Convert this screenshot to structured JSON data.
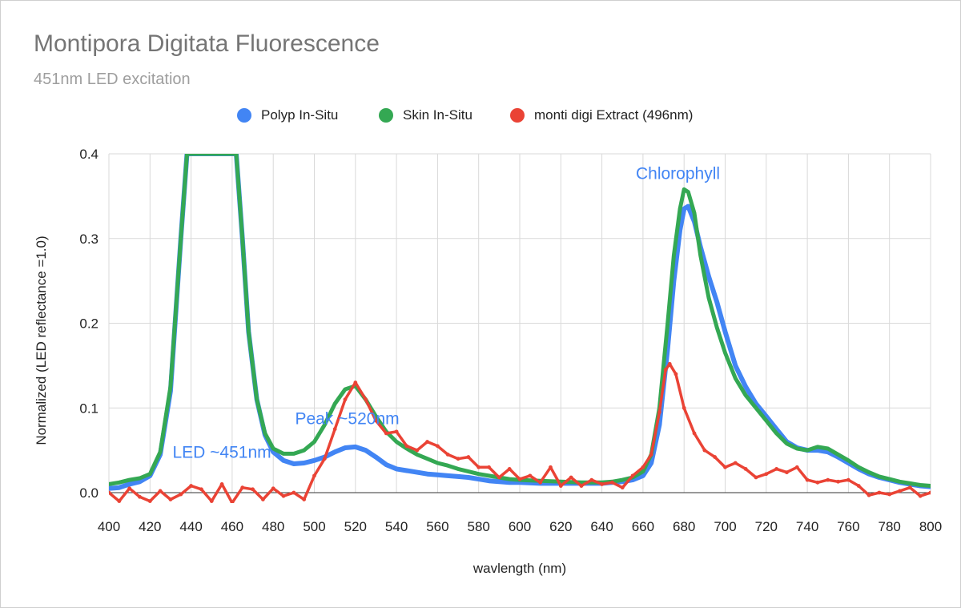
{
  "title": "Montipora Digitata Fluorescence",
  "subtitle": "451nm LED excitation",
  "legend": [
    {
      "label": "Polyp In-Situ",
      "color": "#4285f4"
    },
    {
      "label": "Skin In-Situ",
      "color": "#34a853"
    },
    {
      "label": "monti digi Extract (496nm)",
      "color": "#ea4335"
    }
  ],
  "chart_data": {
    "type": "line",
    "title": "Montipora Digitata Fluorescence",
    "subtitle": "451nm LED excitation",
    "xlabel": "wavlength (nm)",
    "ylabel": "Normalized (LED reflectance =1.0)",
    "xlim": [
      400,
      800
    ],
    "ylim": [
      0,
      0.4
    ],
    "x_ticks": [
      400,
      420,
      440,
      460,
      480,
      500,
      520,
      540,
      560,
      580,
      600,
      620,
      640,
      660,
      680,
      700,
      720,
      740,
      760,
      780,
      800
    ],
    "y_ticks": [
      0.0,
      0.1,
      0.2,
      0.3,
      0.4
    ],
    "y_tick_labels": [
      "0.0",
      "0.1",
      "0.2",
      "0.3",
      "0.4"
    ],
    "grid": true,
    "legend_position": "top",
    "series": [
      {
        "name": "Polyp In-Situ",
        "color": "#4285f4",
        "x": [
          400,
          405,
          410,
          415,
          420,
          425,
          430,
          435,
          438,
          440,
          462,
          465,
          468,
          472,
          476,
          480,
          485,
          490,
          495,
          500,
          505,
          510,
          515,
          520,
          525,
          530,
          535,
          540,
          545,
          550,
          555,
          560,
          565,
          570,
          575,
          580,
          585,
          590,
          595,
          600,
          610,
          620,
          630,
          640,
          645,
          650,
          655,
          660,
          664,
          668,
          672,
          675,
          678,
          680,
          682,
          685,
          688,
          692,
          696,
          700,
          705,
          710,
          715,
          720,
          725,
          730,
          735,
          740,
          745,
          750,
          755,
          760,
          765,
          770,
          775,
          780,
          785,
          790,
          795,
          800
        ],
        "y": [
          0.005,
          0.006,
          0.01,
          0.013,
          0.02,
          0.045,
          0.12,
          0.3,
          0.4,
          0.4,
          0.4,
          0.3,
          0.19,
          0.11,
          0.068,
          0.048,
          0.038,
          0.034,
          0.035,
          0.038,
          0.042,
          0.048,
          0.053,
          0.054,
          0.05,
          0.042,
          0.033,
          0.028,
          0.026,
          0.024,
          0.022,
          0.021,
          0.02,
          0.019,
          0.018,
          0.016,
          0.014,
          0.013,
          0.012,
          0.012,
          0.011,
          0.011,
          0.011,
          0.011,
          0.012,
          0.013,
          0.015,
          0.02,
          0.035,
          0.08,
          0.17,
          0.25,
          0.31,
          0.335,
          0.338,
          0.32,
          0.29,
          0.255,
          0.225,
          0.19,
          0.15,
          0.125,
          0.105,
          0.09,
          0.075,
          0.06,
          0.053,
          0.05,
          0.05,
          0.048,
          0.042,
          0.035,
          0.028,
          0.022,
          0.018,
          0.015,
          0.012,
          0.01,
          0.008,
          0.007
        ]
      },
      {
        "name": "Skin In-Situ",
        "color": "#34a853",
        "x": [
          400,
          405,
          410,
          415,
          420,
          425,
          430,
          435,
          438,
          440,
          462,
          465,
          468,
          472,
          476,
          480,
          485,
          490,
          495,
          500,
          505,
          510,
          515,
          520,
          525,
          530,
          535,
          540,
          545,
          550,
          555,
          560,
          565,
          570,
          575,
          580,
          585,
          590,
          595,
          600,
          610,
          620,
          630,
          640,
          645,
          650,
          655,
          660,
          664,
          668,
          672,
          675,
          678,
          680,
          682,
          685,
          688,
          692,
          696,
          700,
          705,
          710,
          715,
          720,
          725,
          730,
          735,
          740,
          745,
          750,
          755,
          760,
          765,
          770,
          775,
          780,
          785,
          790,
          795,
          800
        ],
        "y": [
          0.01,
          0.012,
          0.015,
          0.017,
          0.022,
          0.048,
          0.125,
          0.3,
          0.4,
          0.4,
          0.4,
          0.3,
          0.19,
          0.11,
          0.07,
          0.052,
          0.046,
          0.046,
          0.05,
          0.06,
          0.08,
          0.105,
          0.122,
          0.126,
          0.11,
          0.09,
          0.072,
          0.06,
          0.052,
          0.045,
          0.04,
          0.035,
          0.032,
          0.028,
          0.025,
          0.022,
          0.02,
          0.018,
          0.016,
          0.015,
          0.014,
          0.013,
          0.012,
          0.012,
          0.013,
          0.015,
          0.018,
          0.025,
          0.045,
          0.1,
          0.2,
          0.28,
          0.335,
          0.358,
          0.355,
          0.33,
          0.28,
          0.23,
          0.195,
          0.165,
          0.135,
          0.115,
          0.1,
          0.085,
          0.07,
          0.058,
          0.052,
          0.05,
          0.054,
          0.052,
          0.045,
          0.038,
          0.03,
          0.024,
          0.019,
          0.016,
          0.013,
          0.011,
          0.009,
          0.008
        ]
      },
      {
        "name": "monti digi Extract (496nm)",
        "color": "#ea4335",
        "x": [
          400,
          405,
          410,
          415,
          420,
          425,
          430,
          435,
          440,
          445,
          450,
          455,
          460,
          465,
          470,
          475,
          480,
          485,
          490,
          495,
          500,
          505,
          510,
          515,
          520,
          525,
          530,
          535,
          540,
          545,
          550,
          555,
          560,
          565,
          570,
          575,
          580,
          585,
          590,
          595,
          600,
          605,
          610,
          615,
          620,
          625,
          630,
          635,
          640,
          645,
          650,
          655,
          660,
          664,
          668,
          671,
          673,
          676,
          680,
          685,
          690,
          695,
          700,
          705,
          710,
          715,
          720,
          725,
          730,
          735,
          740,
          745,
          750,
          755,
          760,
          765,
          770,
          775,
          780,
          785,
          790,
          795,
          800
        ],
        "y": [
          0.0,
          -0.01,
          0.005,
          -0.005,
          -0.01,
          0.002,
          -0.008,
          -0.002,
          0.008,
          0.004,
          -0.01,
          0.01,
          -0.012,
          0.006,
          0.004,
          -0.008,
          0.005,
          -0.004,
          0.0,
          -0.008,
          0.02,
          0.04,
          0.075,
          0.11,
          0.13,
          0.11,
          0.085,
          0.07,
          0.072,
          0.055,
          0.05,
          0.06,
          0.055,
          0.045,
          0.04,
          0.042,
          0.03,
          0.03,
          0.018,
          0.028,
          0.016,
          0.02,
          0.012,
          0.03,
          0.008,
          0.018,
          0.008,
          0.015,
          0.01,
          0.012,
          0.006,
          0.02,
          0.03,
          0.045,
          0.095,
          0.145,
          0.152,
          0.14,
          0.1,
          0.07,
          0.05,
          0.042,
          0.03,
          0.035,
          0.028,
          0.018,
          0.022,
          0.028,
          0.024,
          0.03,
          0.015,
          0.012,
          0.015,
          0.013,
          0.015,
          0.008,
          -0.003,
          0.0,
          -0.002,
          0.002,
          0.006,
          -0.004,
          0.0
        ]
      }
    ],
    "annotations": [
      {
        "text": "LED ~451nm",
        "x": 455,
        "y": 0.041
      },
      {
        "text": "Peak ~520nm",
        "x": 516,
        "y": 0.081
      },
      {
        "text": "Chlorophyll",
        "x": 677,
        "y": 0.37
      }
    ]
  }
}
